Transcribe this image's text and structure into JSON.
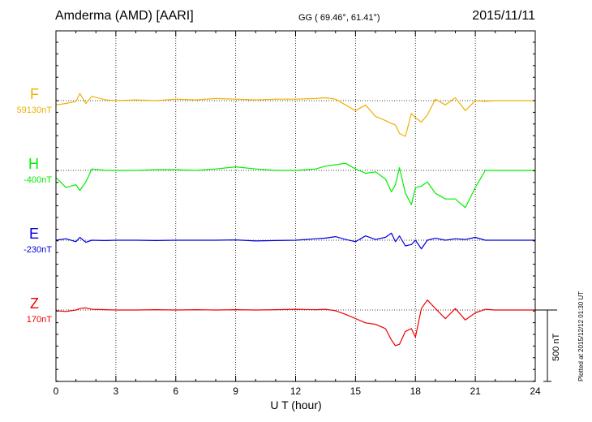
{
  "header": {
    "station": "Amderma (AMD)  [AARI]",
    "coords": "GG ( 69.46°,  61.41°)",
    "date": "2015/11/11"
  },
  "footer": {
    "plotted": "Plotted at 2015/12/12 01:30 UT",
    "scale_label": "500 nT"
  },
  "chart_data": {
    "type": "line",
    "title": "Amderma (AMD)  [AARI]",
    "xlabel": "U T (hour)",
    "xlim": [
      0,
      24
    ],
    "x_ticks": [
      0,
      3,
      6,
      9,
      12,
      15,
      18,
      21,
      24
    ],
    "grid": true,
    "scale_bar_nT": 500,
    "x": [
      0,
      0.5,
      1.0,
      1.2,
      1.5,
      1.8,
      2.5,
      3,
      4,
      5,
      6,
      7,
      8,
      9,
      10,
      11,
      12,
      13,
      13.5,
      14,
      14.5,
      15,
      15.5,
      16,
      16.5,
      16.8,
      17,
      17.2,
      17.5,
      17.8,
      18,
      18.3,
      18.6,
      19,
      19.5,
      20,
      20.5,
      21,
      21.5,
      22,
      23,
      24
    ],
    "series": [
      {
        "name": "F",
        "baseline_label": "59130nT",
        "color": "#f0b000",
        "values": [
          59100,
          59110,
          59125,
          59180,
          59110,
          59160,
          59135,
          59130,
          59135,
          59130,
          59140,
          59135,
          59145,
          59140,
          59135,
          59140,
          59140,
          59145,
          59150,
          59140,
          59100,
          59060,
          59100,
          59020,
          58990,
          58970,
          58960,
          58900,
          58880,
          59040,
          59010,
          58980,
          59030,
          59140,
          59100,
          59150,
          59060,
          59130,
          59125,
          59130,
          59130,
          59130
        ]
      },
      {
        "name": "H",
        "baseline_label": "-400nT",
        "color": "#00ee00",
        "values": [
          -450,
          -520,
          -500,
          -540,
          -480,
          -390,
          -400,
          -400,
          -400,
          -395,
          -395,
          -400,
          -390,
          -375,
          -390,
          -400,
          -400,
          -390,
          -370,
          -360,
          -350,
          -390,
          -420,
          -410,
          -460,
          -550,
          -500,
          -380,
          -560,
          -640,
          -520,
          -510,
          -480,
          -560,
          -600,
          -600,
          -660,
          -520,
          -400,
          -400,
          -400,
          -400
        ]
      },
      {
        "name": "E",
        "baseline_label": "-230nT",
        "color": "#0000dd",
        "values": [
          -230,
          -220,
          -240,
          -210,
          -245,
          -230,
          -232,
          -230,
          -230,
          -232,
          -230,
          -230,
          -230,
          -228,
          -235,
          -232,
          -230,
          -220,
          -215,
          -205,
          -225,
          -240,
          -200,
          -225,
          -210,
          -180,
          -240,
          -200,
          -270,
          -260,
          -230,
          -290,
          -230,
          -215,
          -230,
          -220,
          -225,
          -210,
          -230,
          -230,
          -230,
          -230
        ]
      },
      {
        "name": "Z",
        "baseline_label": "170nT",
        "color": "#ee0000",
        "values": [
          165,
          160,
          170,
          180,
          185,
          175,
          172,
          170,
          170,
          172,
          170,
          172,
          170,
          172,
          170,
          172,
          175,
          172,
          175,
          165,
          140,
          110,
          80,
          70,
          40,
          -40,
          -80,
          -70,
          20,
          40,
          -20,
          180,
          240,
          180,
          110,
          180,
          100,
          150,
          175,
          170,
          170,
          170
        ]
      }
    ]
  }
}
